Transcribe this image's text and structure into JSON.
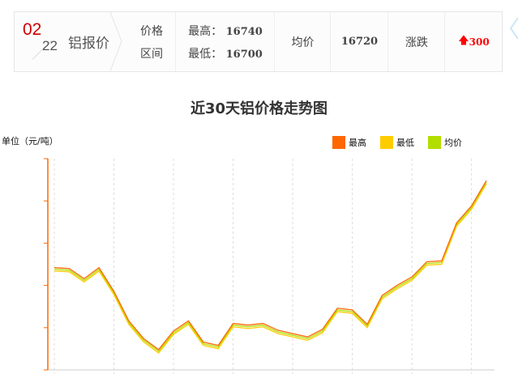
{
  "header": {
    "month": "02",
    "day": "22",
    "name": "铝报价",
    "range_label_1": "价格",
    "range_label_2": "区间",
    "high_label": "最高：",
    "high_value": "16740",
    "low_label": "最低：",
    "low_value": "16700",
    "avg_label": "均价",
    "avg_value": "16720",
    "change_label": "涨跌",
    "change_value": "300",
    "change_color": "#ff0000",
    "change_icon": "arrow-up-icon"
  },
  "chart_data": {
    "type": "line",
    "title": "近30天铝价格走势图",
    "ylabel": "单位（元/吨）",
    "ylim": [
      14500,
      17000
    ],
    "grid": "vertical dashed",
    "legend": "top-right",
    "x": [
      1,
      2,
      3,
      4,
      5,
      6,
      7,
      8,
      9,
      10,
      11,
      12,
      13,
      14,
      15,
      16,
      17,
      18,
      19,
      20,
      21,
      22,
      23,
      24,
      25,
      26,
      27,
      28,
      29,
      30
    ],
    "series": [
      {
        "name": "最高",
        "color": "#ff6600",
        "values": [
          15710,
          15700,
          15580,
          15710,
          15430,
          15080,
          14870,
          14740,
          14960,
          15080,
          14830,
          14790,
          15050,
          15030,
          15050,
          14970,
          14930,
          14890,
          14980,
          15230,
          15210,
          15040,
          15380,
          15500,
          15600,
          15780,
          15790,
          16240,
          16440,
          16740
        ]
      },
      {
        "name": "最低",
        "color": "#ffcc00",
        "values": [
          15670,
          15660,
          15540,
          15670,
          15390,
          15040,
          14830,
          14700,
          14920,
          15040,
          14790,
          14750,
          15010,
          14990,
          15010,
          14930,
          14890,
          14850,
          14940,
          15190,
          15170,
          15000,
          15340,
          15460,
          15560,
          15740,
          15750,
          16200,
          16400,
          16700
        ]
      },
      {
        "name": "均价",
        "color": "#b2dd00",
        "values": [
          15690,
          15680,
          15560,
          15690,
          15410,
          15060,
          14850,
          14720,
          14940,
          15060,
          14810,
          14770,
          15030,
          15010,
          15030,
          14950,
          14910,
          14870,
          14960,
          15210,
          15190,
          15020,
          15360,
          15480,
          15580,
          15760,
          15770,
          16220,
          16420,
          16720
        ]
      }
    ]
  }
}
